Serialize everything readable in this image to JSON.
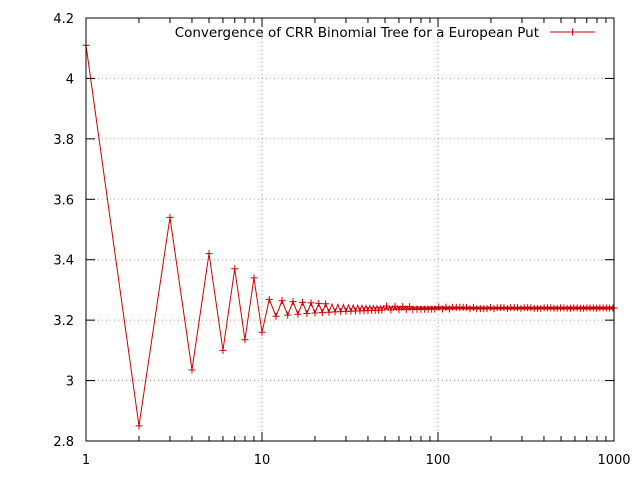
{
  "chart_data": {
    "type": "line",
    "title": "",
    "xlabel": "",
    "ylabel": "",
    "xscale": "log",
    "xlim": [
      1,
      1000
    ],
    "ylim": [
      2.8,
      4.2
    ],
    "grid": true,
    "legend_position": "top-right",
    "x_ticks": [
      1,
      10,
      100,
      1000
    ],
    "x_tick_labels": [
      "1",
      "10",
      "100",
      "1000"
    ],
    "y_ticks": [
      2.8,
      3,
      3.2,
      3.4,
      3.6,
      3.8,
      4,
      4.2
    ],
    "y_tick_labels": [
      "2.8",
      "3",
      "3.2",
      "3.4",
      "3.6",
      "3.8",
      "4",
      "4.2"
    ],
    "colors": {
      "series": "#cc0000",
      "grid": "#a0a0a0",
      "axes": "#000000"
    },
    "series": [
      {
        "name": "Convergence of CRR Binomial Tree for a European Put",
        "marker": "plus",
        "convergence": {
          "n_start": 1,
          "n_end": 1000,
          "limit": 3.24,
          "odd_amplitude": 0.295,
          "even_amplitude": 0.3,
          "exponent": 0.97
        },
        "points": [
          [
            1,
            4.11
          ],
          [
            2,
            2.85
          ],
          [
            3,
            3.54
          ],
          [
            4,
            3.035
          ],
          [
            5,
            3.42
          ],
          [
            6,
            3.1
          ],
          [
            7,
            3.37
          ],
          [
            8,
            3.135
          ],
          [
            9,
            3.34
          ],
          [
            10,
            3.16
          ]
        ]
      }
    ]
  }
}
